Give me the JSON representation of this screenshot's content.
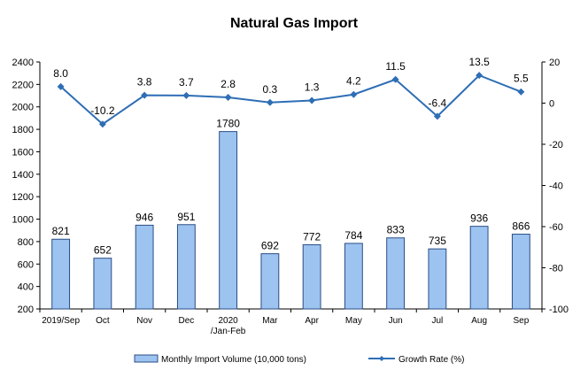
{
  "chart_data": {
    "type": "bar+line",
    "title": "Natural Gas Import",
    "categories": [
      "2019/Sep",
      "Oct",
      "Nov",
      "Dec",
      "2020\n/Jan-Feb",
      "Mar",
      "Apr",
      "May",
      "Jun",
      "Jul",
      "Aug",
      "Sep"
    ],
    "series": [
      {
        "name": "Monthly Import Volume (10,000 tons)",
        "type": "bar",
        "axis": "left",
        "values": [
          821,
          652,
          946,
          951,
          1780,
          692,
          772,
          784,
          833,
          735,
          936,
          866
        ]
      },
      {
        "name": "Growth Rate (%)",
        "type": "line",
        "axis": "right",
        "values": [
          8.0,
          -10.2,
          3.8,
          3.7,
          2.8,
          0.3,
          1.3,
          4.2,
          11.5,
          -6.4,
          13.5,
          5.5
        ]
      }
    ],
    "left_axis": {
      "min": 200,
      "max": 2400,
      "step": 200
    },
    "right_axis": {
      "min": -100,
      "max": 20,
      "step": 20
    },
    "grid": false,
    "legend_position": "bottom",
    "colors": {
      "bar_fill": "#9dc3f0",
      "bar_stroke": "#2a4d85",
      "line": "#2e6eb5"
    }
  }
}
